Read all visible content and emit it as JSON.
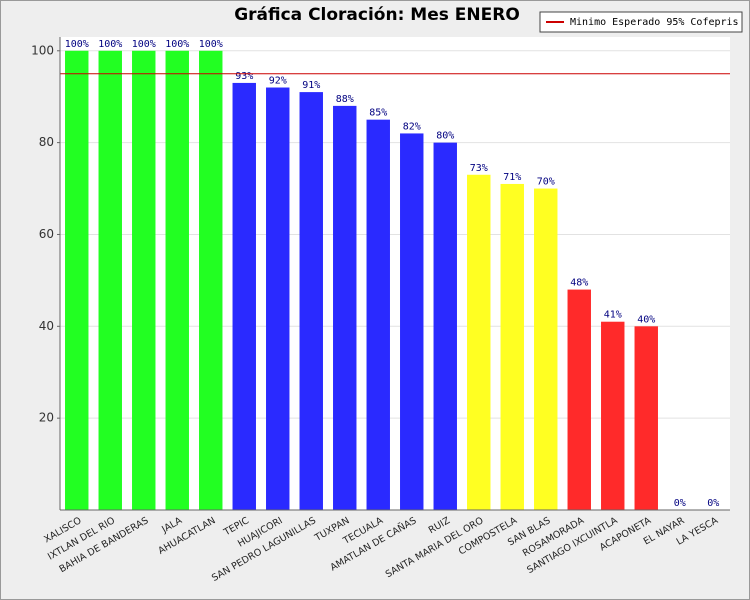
{
  "chart_data": {
    "type": "bar",
    "title": "Gráfica Cloración: Mes ENERO",
    "categories": [
      "XALISCO",
      "IXTLAN DEL RIO",
      "BAHIA DE BANDERAS",
      "JALA",
      "AHUACATLAN",
      "TEPIC",
      "HUAJICORI",
      "SAN PEDRO LAGUNILLAS",
      "TUXPAN",
      "TECUALA",
      "AMATLAN DE CAÑAS",
      "RUIZ",
      "SANTA MARIA DEL ORO",
      "COMPOSTELA",
      "SAN BLAS",
      "ROSAMORADA",
      "SANTIAGO IXCUINTLA",
      "ACAPONETA",
      "EL NAYAR",
      "LA YESCA"
    ],
    "values": [
      100,
      100,
      100,
      100,
      100,
      93,
      92,
      91,
      88,
      85,
      82,
      80,
      73,
      71,
      70,
      48,
      41,
      40,
      0,
      0
    ],
    "value_labels": [
      "100%",
      "100%",
      "100%",
      "100%",
      "100%",
      "93%",
      "92%",
      "91%",
      "88%",
      "85%",
      "82%",
      "80%",
      "73%",
      "71%",
      "70%",
      "48%",
      "41%",
      "40%",
      "0%",
      "0%"
    ],
    "colors": [
      "#22ff22",
      "#22ff22",
      "#22ff22",
      "#22ff22",
      "#22ff22",
      "#2a2aff",
      "#2a2aff",
      "#2a2aff",
      "#2a2aff",
      "#2a2aff",
      "#2a2aff",
      "#2a2aff",
      "#ffff22",
      "#ffff22",
      "#ffff22",
      "#ff2a2a",
      "#ff2a2a",
      "#ff2a2a",
      "#ff2a2a",
      "#ff2a2a"
    ],
    "ylim": [
      0,
      103
    ],
    "yticks": [
      20,
      40,
      60,
      80,
      100
    ],
    "grid": true,
    "reference_line": {
      "value": 95,
      "label": "Minimo Esperado 95% Cofepris",
      "color": "#cc0000"
    },
    "legend": "top-right"
  }
}
